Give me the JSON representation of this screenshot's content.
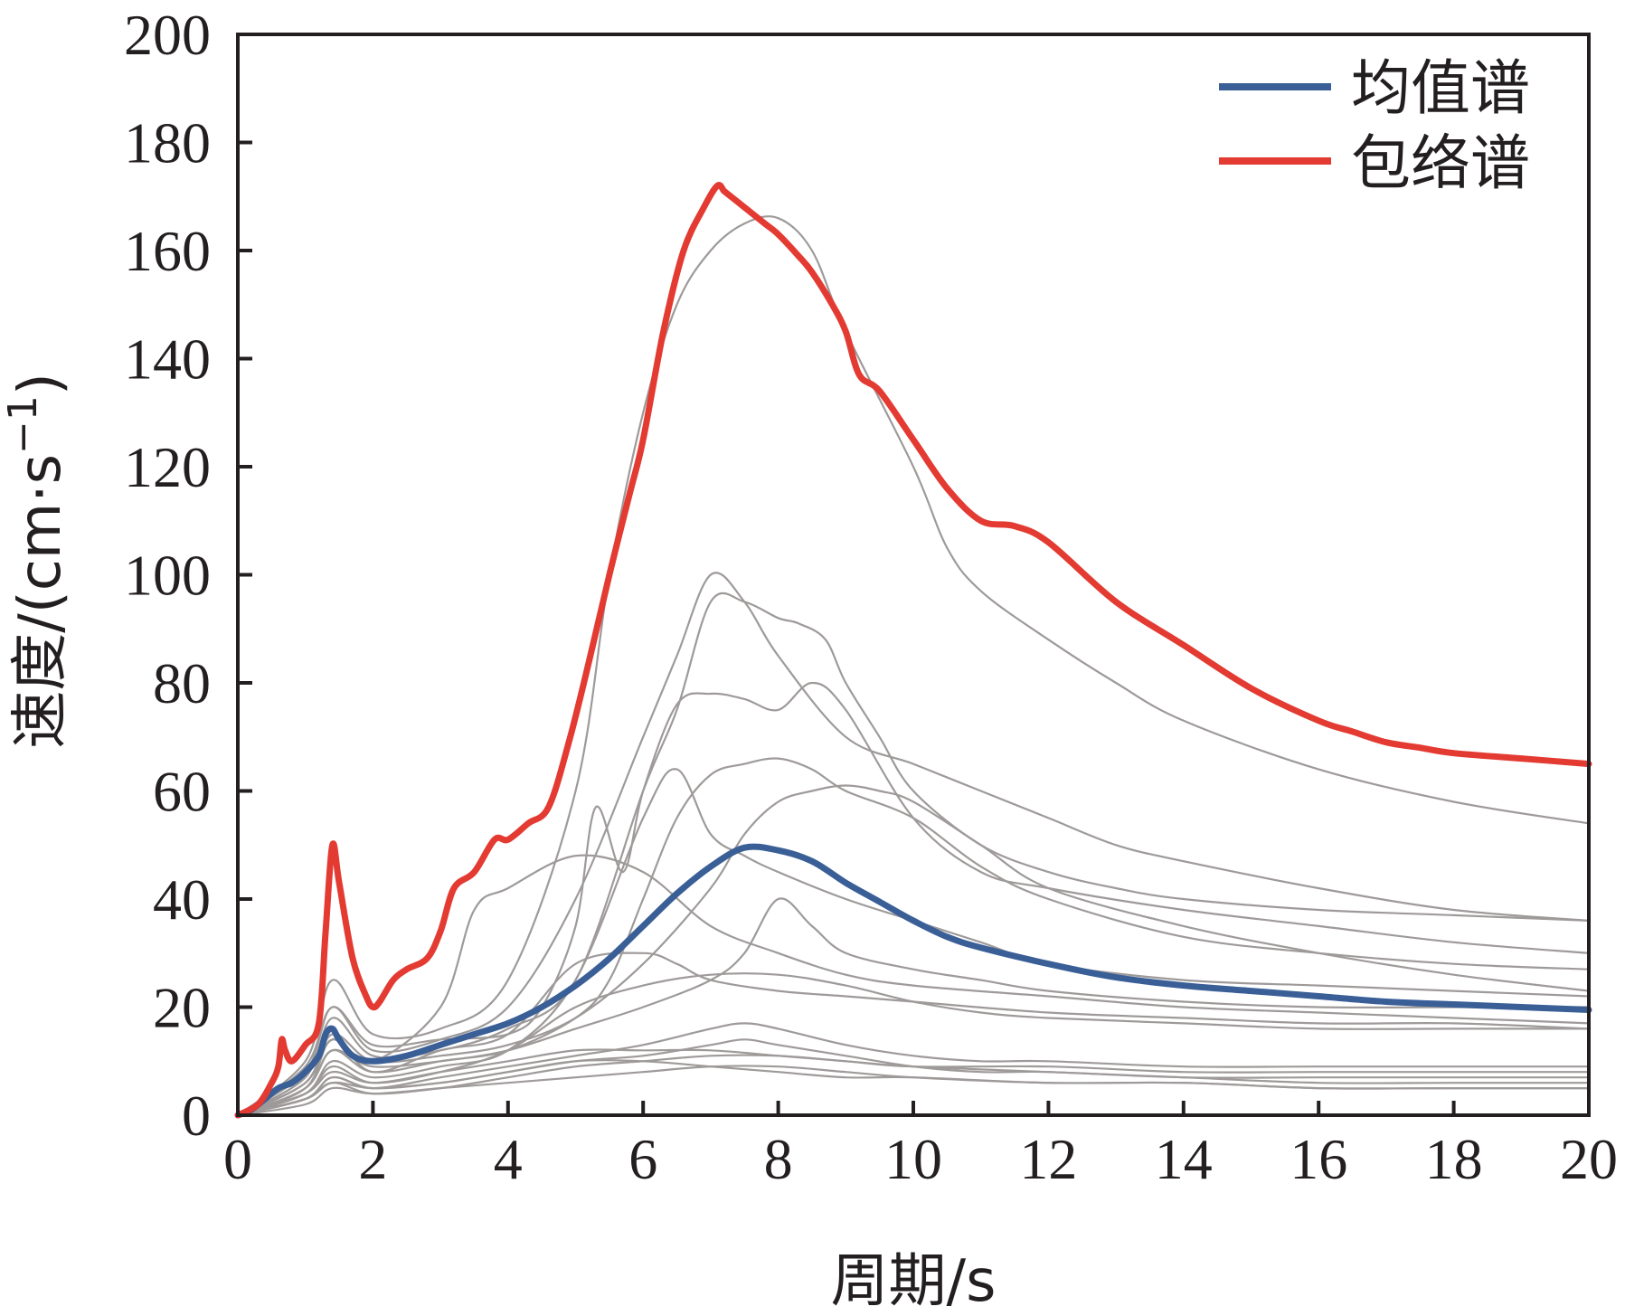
{
  "chart_data": {
    "type": "line",
    "xlabel": "周期/s",
    "ylabel_main": "速度/(cm·s",
    "ylabel_sup": "−1",
    "ylabel_close": ")",
    "xlim": [
      0,
      20
    ],
    "ylim": [
      0,
      200
    ],
    "xticks": [
      "0",
      "2",
      "4",
      "6",
      "8",
      "10",
      "12",
      "14",
      "16",
      "18",
      "20"
    ],
    "yticks": [
      "0",
      "20",
      "40",
      "60",
      "80",
      "100",
      "120",
      "140",
      "160",
      "180",
      "200"
    ],
    "grid": false,
    "legend_position": "top-right",
    "colors": {
      "mean": "#3a5f97",
      "envelope": "#e33a32",
      "records": "#9e9a99"
    },
    "series": [
      {
        "name": "均值谱",
        "role": "mean",
        "x": [
          0,
          0.2,
          0.4,
          0.6,
          0.8,
          1.0,
          1.2,
          1.3,
          1.4,
          1.5,
          1.7,
          2.0,
          2.5,
          3.0,
          3.5,
          4.0,
          4.5,
          5.0,
          5.5,
          6.0,
          6.5,
          7.0,
          7.5,
          8.0,
          8.5,
          9.0,
          9.5,
          10.0,
          10.5,
          11.0,
          12.0,
          13.0,
          14.0,
          15.0,
          16.0,
          17.0,
          18.0,
          19.0,
          20.0
        ],
        "y": [
          0,
          1,
          3,
          5,
          6,
          8,
          11,
          15,
          16,
          14,
          11,
          10,
          11,
          13,
          15,
          17,
          20,
          24,
          29,
          35,
          41,
          46,
          49.5,
          49,
          47,
          43,
          39.5,
          36,
          33,
          31,
          28,
          25.5,
          24,
          23,
          22,
          21,
          20.5,
          20,
          19.5
        ]
      },
      {
        "name": "包络谱",
        "role": "envelope",
        "x": [
          0,
          0.3,
          0.5,
          0.6,
          0.65,
          0.7,
          0.8,
          1.0,
          1.2,
          1.3,
          1.4,
          1.5,
          1.7,
          1.9,
          2.0,
          2.1,
          2.3,
          2.5,
          2.8,
          3.0,
          3.2,
          3.5,
          3.8,
          4.0,
          4.3,
          4.6,
          4.9,
          5.2,
          5.5,
          5.8,
          6.0,
          6.3,
          6.6,
          6.9,
          7.1,
          7.2,
          7.3,
          7.5,
          7.6,
          7.8,
          8.0,
          8.3,
          8.5,
          8.8,
          9.0,
          9.2,
          9.5,
          10.0,
          10.5,
          11.0,
          11.5,
          12.0,
          13.0,
          14.0,
          15.0,
          16.0,
          16.5,
          17.0,
          17.5,
          18.0,
          19.0,
          20.0
        ],
        "y": [
          0,
          2,
          6,
          9,
          14,
          12,
          10,
          13,
          17,
          34,
          50,
          43,
          29,
          22,
          20,
          21,
          25,
          27,
          29,
          34,
          42,
          45,
          51,
          51,
          54,
          57,
          69,
          84,
          100,
          115,
          125,
          145,
          160,
          168,
          172,
          171,
          170,
          168,
          167,
          165,
          163,
          159,
          156,
          150,
          145,
          137,
          134,
          125,
          116,
          110,
          109,
          106,
          95,
          87,
          79,
          73,
          71,
          69,
          68,
          67,
          66,
          65
        ]
      }
    ],
    "records": [
      {
        "x": [
          0,
          1,
          1.4,
          2,
          3,
          4,
          5,
          5.5,
          6,
          6.5,
          7,
          7.5,
          8,
          8.5,
          9,
          10,
          10.5,
          11,
          12,
          13,
          14,
          16,
          18,
          20
        ],
        "y": [
          0,
          10,
          25,
          15,
          16,
          25,
          60,
          100,
          130,
          150,
          160,
          165,
          166,
          160,
          145,
          120,
          105,
          97,
          88,
          80,
          73,
          64,
          58,
          54
        ]
      },
      {
        "x": [
          0,
          1,
          1.4,
          2,
          3,
          4,
          5,
          6,
          6.5,
          7,
          7.5,
          8,
          9,
          10,
          11,
          12,
          13,
          14,
          16,
          18,
          20
        ],
        "y": [
          0,
          8,
          20,
          12,
          14,
          20,
          40,
          70,
          85,
          100,
          95,
          85,
          70,
          65,
          60,
          55,
          50,
          47,
          42,
          38,
          36
        ]
      },
      {
        "x": [
          0,
          1,
          1.4,
          2,
          3,
          4,
          5,
          6,
          6.5,
          7,
          7.5,
          8,
          8.3,
          8.7,
          9,
          9.5,
          10,
          11,
          12,
          13,
          14,
          16,
          18,
          20
        ],
        "y": [
          0,
          7,
          18,
          11,
          12,
          16,
          25,
          60,
          75,
          95,
          95,
          92,
          91,
          88,
          80,
          70,
          60,
          50,
          45,
          42,
          40,
          38,
          37,
          36
        ]
      },
      {
        "x": [
          0,
          1,
          1.4,
          2,
          3,
          4,
          4.5,
          5,
          5.3,
          5.7,
          6,
          6.5,
          7,
          7.5,
          8,
          8.5,
          9,
          10,
          11,
          12,
          14,
          16,
          18,
          20
        ],
        "y": [
          0,
          9,
          20,
          13,
          14,
          15,
          20,
          35,
          57,
          45,
          60,
          76,
          78,
          77,
          75,
          80,
          75,
          55,
          45,
          42,
          38,
          35,
          32,
          30
        ]
      },
      {
        "x": [
          0,
          1,
          1.4,
          2,
          3,
          4,
          5,
          5.5,
          6,
          6.5,
          7,
          7.5,
          8,
          8.5,
          9,
          10,
          11,
          12,
          14,
          16,
          18,
          20
        ],
        "y": [
          0,
          5,
          12,
          8,
          10,
          12,
          18,
          25,
          40,
          55,
          63,
          65,
          66,
          64,
          60,
          55,
          46,
          40,
          33,
          30,
          28,
          27
        ]
      },
      {
        "x": [
          0,
          1,
          1.4,
          2,
          3,
          4,
          5,
          6,
          7,
          7.5,
          8,
          8.5,
          9,
          9.5,
          10,
          11,
          12,
          14,
          16,
          18,
          20
        ],
        "y": [
          0,
          6,
          15,
          10,
          11,
          13,
          18,
          28,
          42,
          52,
          58,
          60,
          61,
          60,
          58,
          50,
          42,
          35,
          30,
          26,
          23
        ]
      },
      {
        "x": [
          0,
          1,
          1.4,
          2,
          3,
          4,
          5,
          6,
          6.5,
          7,
          7.5,
          8,
          9,
          10,
          11,
          12,
          14,
          16,
          18,
          20
        ],
        "y": [
          0,
          4,
          10,
          7,
          9,
          12,
          25,
          55,
          64,
          52,
          48,
          45,
          40,
          36,
          32,
          28,
          25,
          24,
          23,
          22
        ]
      },
      {
        "x": [
          0,
          1,
          1.4,
          2,
          3,
          4,
          5,
          6,
          7,
          7.5,
          8,
          8.5,
          9,
          10,
          11,
          12,
          14,
          16,
          18,
          20
        ],
        "y": [
          0,
          5,
          12,
          9,
          10,
          12,
          16,
          20,
          25,
          30,
          40,
          35,
          30,
          27,
          25,
          23,
          21,
          20,
          20,
          20
        ]
      },
      {
        "x": [
          0,
          1,
          1.4,
          2,
          3,
          4,
          5,
          6,
          7,
          8,
          9,
          10,
          11,
          12,
          14,
          16,
          18,
          20
        ],
        "y": [
          0,
          4,
          9,
          6,
          8,
          12,
          20,
          24,
          26,
          26,
          24,
          21,
          19,
          18,
          17,
          16,
          16,
          16
        ]
      },
      {
        "x": [
          0,
          1,
          1.4,
          2,
          3,
          4,
          5,
          6,
          7,
          7.5,
          8,
          9,
          10,
          11,
          12,
          14,
          16,
          18,
          20
        ],
        "y": [
          0,
          3,
          7,
          5,
          7,
          9,
          11,
          13,
          16,
          17,
          16,
          13,
          11,
          10,
          10,
          9,
          9,
          9,
          9
        ]
      },
      {
        "x": [
          0,
          1,
          1.4,
          2,
          3,
          4,
          5,
          6,
          7,
          7.5,
          8,
          9,
          10,
          11,
          12,
          14,
          16,
          18,
          20
        ],
        "y": [
          0,
          3,
          6,
          5,
          6,
          8,
          10,
          11,
          13,
          14,
          13,
          11,
          9,
          8,
          8,
          7,
          7,
          7,
          7
        ]
      },
      {
        "x": [
          0,
          1,
          1.4,
          2,
          3,
          4,
          5,
          6,
          7,
          8,
          9,
          10,
          12,
          14,
          16,
          18,
          20
        ],
        "y": [
          0,
          3,
          6,
          4,
          5,
          7,
          9,
          10,
          11,
          11,
          10,
          9,
          8,
          7,
          6,
          6,
          6
        ]
      },
      {
        "x": [
          0,
          1,
          1.4,
          2,
          3,
          4,
          5,
          6,
          7,
          8,
          9,
          10,
          12,
          14,
          16,
          18,
          20
        ],
        "y": [
          0,
          2,
          5,
          4,
          5,
          6,
          7,
          8,
          9,
          9,
          8,
          7,
          6,
          6,
          5,
          5,
          5
        ]
      },
      {
        "x": [
          0,
          1,
          1.4,
          2,
          3,
          4,
          5,
          6,
          7,
          8,
          9,
          10,
          12,
          14,
          16,
          18,
          20
        ],
        "y": [
          0,
          4,
          8,
          6,
          8,
          10,
          12,
          12,
          12,
          11,
          10,
          9,
          9,
          8,
          8,
          8,
          8
        ]
      },
      {
        "x": [
          0,
          1,
          1.4,
          2,
          3,
          3.5,
          4,
          5,
          6,
          7,
          8,
          9,
          10,
          12,
          14,
          16,
          18,
          20
        ],
        "y": [
          0,
          6,
          14,
          10,
          20,
          38,
          42,
          48,
          45,
          35,
          30,
          26,
          24,
          22,
          20,
          19,
          18,
          17
        ]
      },
      {
        "x": [
          0,
          1,
          1.4,
          2,
          3,
          4,
          5,
          6,
          7,
          8,
          9,
          10,
          12,
          14,
          16,
          18,
          20
        ],
        "y": [
          0,
          3,
          7,
          5,
          6,
          8,
          10,
          10,
          9,
          8,
          7,
          7,
          6,
          6,
          5,
          5,
          5
        ]
      },
      {
        "x": [
          0,
          1,
          1.4,
          2,
          3,
          4,
          5,
          6,
          6.5,
          7,
          8,
          9,
          10,
          12,
          14,
          16,
          18,
          20
        ],
        "y": [
          0,
          5,
          14,
          8,
          12,
          15,
          28,
          30,
          28,
          25,
          23,
          22,
          21,
          19,
          18,
          17,
          17,
          16
        ]
      }
    ]
  }
}
